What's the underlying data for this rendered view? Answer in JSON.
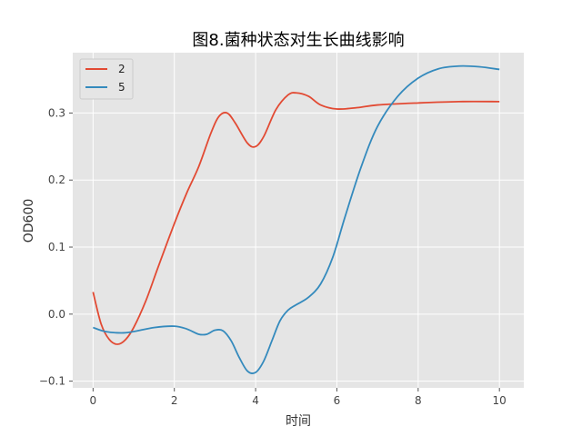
{
  "chart_data": {
    "type": "line",
    "title": "图8.菌种状态对生长曲线影响",
    "xlabel": "时间",
    "ylabel": "OD600",
    "xlim": [
      -0.5,
      10.6
    ],
    "ylim": [
      -0.11,
      0.39
    ],
    "xticks": [
      0,
      2,
      4,
      6,
      8,
      10
    ],
    "yticks": [
      -0.1,
      0.0,
      0.1,
      0.2,
      0.3
    ],
    "ytick_labels": [
      "−0.1",
      "0.0",
      "0.1",
      "0.2",
      "0.3"
    ],
    "grid": true,
    "legend_position": "top-left",
    "series": [
      {
        "name": "2",
        "color": "#E24A33",
        "x": [
          0,
          0.2,
          0.4,
          0.6,
          0.8,
          1.0,
          1.3,
          1.6,
          2.0,
          2.3,
          2.6,
          2.9,
          3.1,
          3.3,
          3.5,
          3.8,
          4.0,
          4.2,
          4.5,
          4.8,
          5.0,
          5.3,
          5.6,
          6.0,
          6.5,
          7.0,
          8.0,
          9.0,
          10.0
        ],
        "y": [
          0.033,
          -0.015,
          -0.038,
          -0.045,
          -0.038,
          -0.02,
          0.02,
          0.07,
          0.135,
          0.18,
          0.22,
          0.27,
          0.295,
          0.3,
          0.285,
          0.255,
          0.25,
          0.265,
          0.305,
          0.327,
          0.33,
          0.325,
          0.312,
          0.306,
          0.308,
          0.312,
          0.315,
          0.317,
          0.317
        ]
      },
      {
        "name": "5",
        "color": "#348ABD",
        "x": [
          0,
          0.3,
          0.7,
          1.0,
          1.5,
          2.0,
          2.3,
          2.6,
          2.8,
          3.0,
          3.2,
          3.4,
          3.6,
          3.8,
          4.0,
          4.2,
          4.4,
          4.6,
          4.8,
          5.0,
          5.3,
          5.6,
          5.9,
          6.2,
          6.6,
          7.0,
          7.5,
          8.0,
          8.5,
          9.0,
          9.5,
          10.0
        ],
        "y": [
          -0.02,
          -0.026,
          -0.028,
          -0.026,
          -0.02,
          -0.018,
          -0.022,
          -0.03,
          -0.03,
          -0.024,
          -0.025,
          -0.04,
          -0.065,
          -0.085,
          -0.087,
          -0.07,
          -0.04,
          -0.01,
          0.006,
          0.014,
          0.025,
          0.045,
          0.085,
          0.145,
          0.22,
          0.28,
          0.325,
          0.352,
          0.366,
          0.37,
          0.369,
          0.365
        ]
      }
    ]
  }
}
